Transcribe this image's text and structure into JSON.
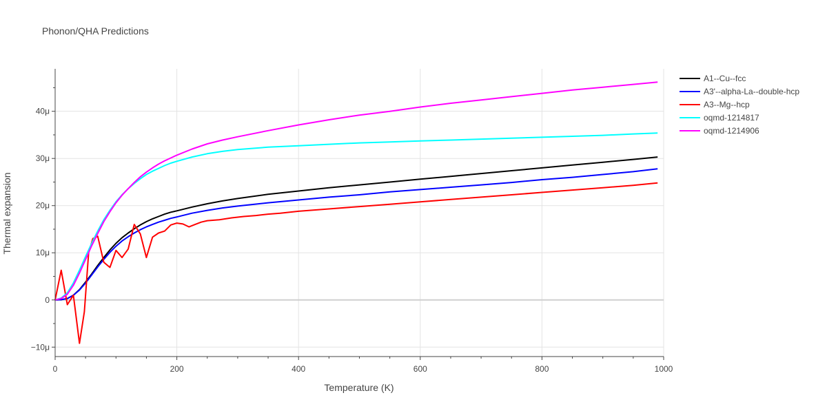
{
  "chart_data": {
    "type": "line",
    "title": "Phonon/QHA Predictions",
    "xlabel": "Temperature (K)",
    "ylabel": "Thermal expansion",
    "xlim": [
      0,
      1000
    ],
    "ylim": [
      -12,
      49
    ],
    "xticks": [
      0,
      200,
      400,
      600,
      800,
      1000
    ],
    "xtick_labels": [
      "0",
      "200",
      "400",
      "600",
      "800",
      "1000"
    ],
    "yticks": [
      -10,
      0,
      10,
      20,
      30,
      40
    ],
    "ytick_labels": [
      "−10μ",
      "0",
      "10μ",
      "20μ",
      "30μ",
      "40μ"
    ],
    "grid": true,
    "legend_position": "right",
    "series": [
      {
        "name": "A1--Cu--fcc",
        "color": "#000000",
        "x": [
          0,
          10,
          20,
          30,
          40,
          50,
          60,
          70,
          80,
          90,
          100,
          110,
          120,
          130,
          140,
          150,
          160,
          170,
          180,
          190,
          200,
          225,
          250,
          275,
          300,
          350,
          400,
          450,
          500,
          550,
          600,
          650,
          700,
          750,
          800,
          850,
          900,
          950,
          990
        ],
        "y": [
          0,
          0.05,
          0.3,
          1.0,
          2.2,
          3.8,
          5.5,
          7.3,
          9.0,
          10.6,
          12.0,
          13.2,
          14.2,
          15.1,
          15.9,
          16.6,
          17.2,
          17.7,
          18.2,
          18.6,
          18.9,
          19.7,
          20.4,
          21.0,
          21.5,
          22.4,
          23.1,
          23.8,
          24.4,
          25.0,
          25.6,
          26.2,
          26.8,
          27.4,
          28.0,
          28.6,
          29.2,
          29.8,
          30.3
        ]
      },
      {
        "name": "A3'--alpha-La--double-hcp",
        "color": "#0000ff",
        "x": [
          0,
          10,
          20,
          30,
          40,
          50,
          60,
          70,
          80,
          90,
          100,
          110,
          120,
          130,
          140,
          150,
          160,
          170,
          180,
          190,
          200,
          225,
          250,
          275,
          300,
          350,
          400,
          450,
          500,
          550,
          600,
          650,
          700,
          750,
          800,
          850,
          900,
          950,
          990
        ],
        "y": [
          0,
          0.05,
          0.3,
          1.0,
          2.1,
          3.6,
          5.3,
          7.0,
          8.6,
          10.1,
          11.4,
          12.5,
          13.4,
          14.2,
          14.9,
          15.5,
          16.0,
          16.5,
          16.9,
          17.3,
          17.6,
          18.4,
          19.0,
          19.5,
          19.9,
          20.6,
          21.2,
          21.8,
          22.3,
          22.9,
          23.4,
          23.9,
          24.4,
          24.9,
          25.5,
          26.0,
          26.6,
          27.2,
          27.8
        ]
      },
      {
        "name": "A3--Mg--hcp",
        "color": "#ff0000",
        "x": [
          0,
          10,
          20,
          30,
          40,
          48,
          55,
          62,
          70,
          80,
          90,
          100,
          110,
          120,
          130,
          140,
          150,
          160,
          170,
          180,
          190,
          200,
          210,
          220,
          230,
          240,
          250,
          270,
          290,
          310,
          330,
          350,
          370,
          400,
          450,
          500,
          550,
          600,
          650,
          700,
          750,
          800,
          850,
          900,
          950,
          990
        ],
        "y": [
          0,
          6.3,
          -1.0,
          1.0,
          -9.2,
          -2.5,
          10.0,
          13.0,
          13.5,
          8.0,
          6.9,
          10.5,
          9.0,
          10.8,
          16.0,
          14.0,
          9.0,
          13.3,
          14.2,
          14.6,
          15.9,
          16.3,
          16.1,
          15.5,
          16.0,
          16.5,
          16.8,
          17.0,
          17.4,
          17.7,
          17.9,
          18.2,
          18.4,
          18.8,
          19.3,
          19.8,
          20.3,
          20.8,
          21.3,
          21.8,
          22.3,
          22.8,
          23.3,
          23.8,
          24.3,
          24.8
        ]
      },
      {
        "name": "oqmd-1214817",
        "color": "#00ffff",
        "x": [
          0,
          10,
          20,
          30,
          40,
          50,
          60,
          70,
          80,
          90,
          100,
          110,
          120,
          130,
          140,
          150,
          160,
          170,
          180,
          190,
          200,
          225,
          250,
          275,
          300,
          350,
          400,
          450,
          500,
          550,
          600,
          650,
          700,
          750,
          800,
          850,
          900,
          950,
          990
        ],
        "y": [
          0,
          0.4,
          1.5,
          3.6,
          6.3,
          9.2,
          12.0,
          14.6,
          17.0,
          19.0,
          20.8,
          22.3,
          23.6,
          24.7,
          25.7,
          26.6,
          27.3,
          27.9,
          28.5,
          29.0,
          29.4,
          30.3,
          31.0,
          31.5,
          31.9,
          32.4,
          32.7,
          33.0,
          33.3,
          33.5,
          33.7,
          33.9,
          34.1,
          34.3,
          34.5,
          34.7,
          34.9,
          35.2,
          35.4
        ]
      },
      {
        "name": "oqmd-1214906",
        "color": "#ff00ff",
        "x": [
          0,
          10,
          20,
          30,
          40,
          50,
          60,
          70,
          80,
          90,
          100,
          110,
          120,
          130,
          140,
          150,
          160,
          170,
          180,
          190,
          200,
          225,
          250,
          275,
          300,
          350,
          400,
          450,
          500,
          550,
          600,
          650,
          700,
          750,
          800,
          850,
          900,
          950,
          990
        ],
        "y": [
          0,
          0.3,
          1.2,
          3.1,
          5.7,
          8.6,
          11.5,
          14.1,
          16.6,
          18.7,
          20.6,
          22.2,
          23.6,
          24.9,
          26.1,
          27.1,
          28.0,
          28.8,
          29.5,
          30.1,
          30.7,
          32.0,
          33.1,
          33.9,
          34.6,
          35.9,
          37.1,
          38.2,
          39.2,
          40.0,
          40.9,
          41.7,
          42.4,
          43.1,
          43.8,
          44.5,
          45.1,
          45.7,
          46.2
        ]
      }
    ]
  }
}
